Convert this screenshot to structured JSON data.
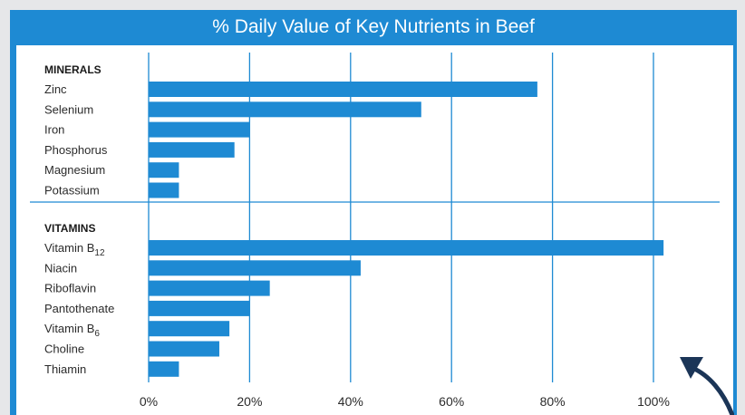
{
  "chart_data": {
    "type": "bar",
    "orientation": "horizontal",
    "title": "% Daily Value of Key Nutrients in Beef",
    "xlim": [
      0,
      100
    ],
    "x_ticks": [
      "0%",
      "20%",
      "40%",
      "60%",
      "80%",
      "100%"
    ],
    "grid": true,
    "bar_color": "#1e8ad3",
    "groups": [
      {
        "name": "MINERALS",
        "categories": [
          {
            "label": "Zinc",
            "value": 77
          },
          {
            "label": "Selenium",
            "value": 54
          },
          {
            "label": "Iron",
            "value": 20
          },
          {
            "label": "Phosphorus",
            "value": 17
          },
          {
            "label": "Magnesium",
            "value": 6
          },
          {
            "label": "Potassium",
            "value": 6
          }
        ]
      },
      {
        "name": "VITAMINS",
        "categories": [
          {
            "label": "Vitamin B",
            "sub": "12",
            "value": 102
          },
          {
            "label": "Niacin",
            "value": 42
          },
          {
            "label": "Riboflavin",
            "value": 24
          },
          {
            "label": "Pantothenate",
            "value": 20
          },
          {
            "label": "Vitamin B",
            "sub": "6",
            "value": 16
          },
          {
            "label": "Choline",
            "value": 14
          },
          {
            "label": "Thiamin",
            "value": 6
          }
        ]
      }
    ]
  },
  "colors": {
    "frame": "#1e8ad3",
    "bar": "#1e8ad3",
    "grid": "#1e8ad3",
    "cursor": "#1b3557"
  },
  "icons": {
    "cursor": "curved-arrow-icon"
  }
}
